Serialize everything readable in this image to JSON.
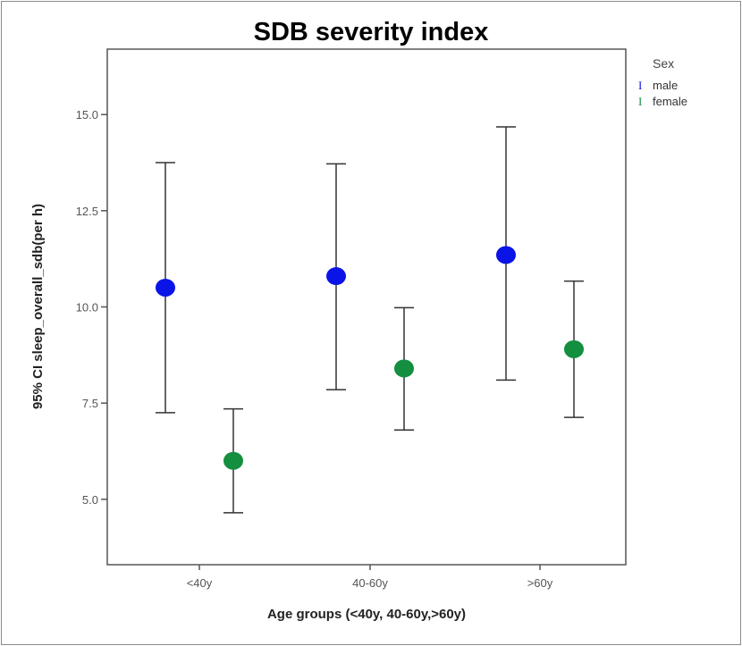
{
  "chart_data": {
    "type": "errorbar",
    "title": "SDB severity index",
    "xlabel": "Age groups (<40y, 40-60y,>60y)",
    "ylabel": "95% CI sleep_overall_sdb(per h)",
    "categories": [
      "<40y",
      "40-60y",
      ">60y"
    ],
    "ylim": [
      3.3,
      16.7
    ],
    "yticks": [
      "5.0",
      "7.5",
      "10.0",
      "12.5",
      "15.0"
    ],
    "ytick_values": [
      5.0,
      7.5,
      10.0,
      12.5,
      15.0
    ],
    "grid": false,
    "legend": {
      "title": "Sex",
      "placement": "right"
    },
    "series": [
      {
        "name": "male",
        "color": "#0a14e6",
        "mean": [
          10.5,
          10.8,
          11.35
        ],
        "lower": [
          7.25,
          7.85,
          8.1
        ],
        "upper": [
          13.75,
          13.72,
          14.68
        ]
      },
      {
        "name": "female",
        "color": "#138f3f",
        "mean": [
          6.0,
          8.4,
          8.9
        ],
        "lower": [
          4.65,
          6.8,
          7.13
        ],
        "upper": [
          7.35,
          9.98,
          10.67
        ]
      }
    ]
  }
}
